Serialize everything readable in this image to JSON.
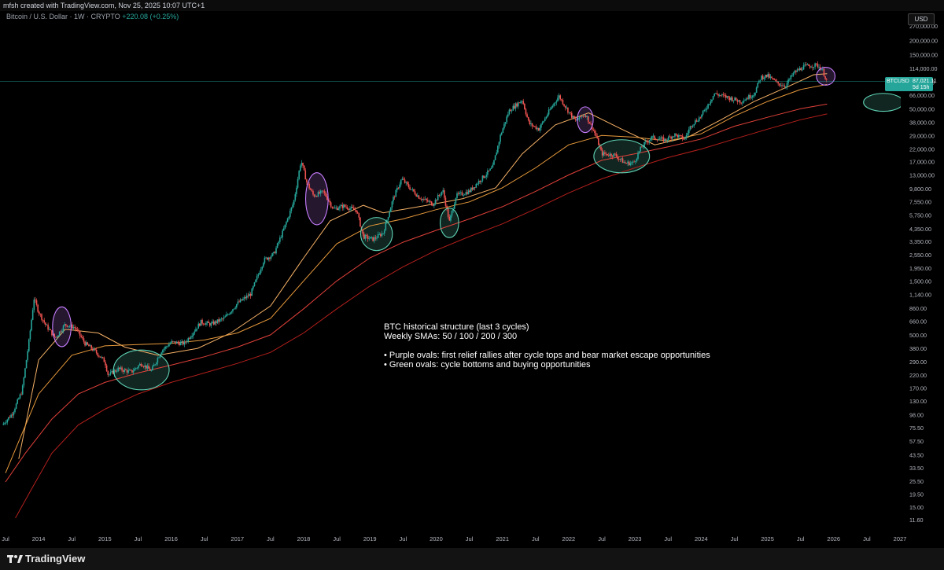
{
  "header": {
    "top_text": "mfsh created with TradingView.com, Nov 25, 2025 10:07 UTC+1",
    "symbol_title": "Bitcoin / U.S. Dollar · 1W · CRYPTO",
    "change_text": "+220.08 (+0.25%)",
    "currency": "USD"
  },
  "footer": {
    "brand": "TradingView"
  },
  "price_tag": {
    "symbol": "BTCUSD",
    "value": "87,021.11",
    "countdown": "5d 15h"
  },
  "annotation": {
    "lines": [
      "BTC historical structure (last 3 cycles)",
      "Weekly SMAs: 50 / 100 / 200 / 300",
      "",
      "• Purple ovals: first relief rallies after cycle tops and bear market escape opportunities",
      "• Green ovals: cycle bottoms and buying opportunities"
    ]
  },
  "colors": {
    "background": "#000000",
    "up": "#26a69a",
    "down": "#ef5350",
    "sma50": "#f7b267",
    "sma100": "#e89a3c",
    "sma200": "#e0413a",
    "sma300": "#b3201c",
    "purple_oval": "#c77dff",
    "green_oval": "#5fd3b5",
    "price_line": "#26a69a"
  },
  "chart_data": {
    "type": "candlestick",
    "timeframe": "1W",
    "y_scale": "log",
    "y_ticks": [
      270000,
      200000,
      150000,
      114000,
      86000,
      66000,
      50000,
      38000,
      29000,
      22000,
      17000,
      13000,
      9800,
      7550,
      5750,
      4350,
      3350,
      2550,
      1950,
      1500,
      1140,
      860,
      660,
      500,
      380,
      290,
      220,
      170,
      130,
      98,
      75.5,
      57.5,
      43.5,
      33.5,
      25.5,
      19.5,
      15,
      11.6
    ],
    "y_tick_labels": [
      "270,000.00",
      "200,000.00",
      "150,000.00",
      "114,000.00",
      "86,000.00",
      "66,000.00",
      "50,000.00",
      "38,000.00",
      "29,000.00",
      "22,000.00",
      "17,000.00",
      "13,000.00",
      "9,800.00",
      "7,550.00",
      "5,750.00",
      "4,350.00",
      "3,350.00",
      "2,550.00",
      "1,950.00",
      "1,500.00",
      "1,140.00",
      "860.00",
      "660.00",
      "500.00",
      "380.00",
      "290.00",
      "220.00",
      "170.00",
      "130.00",
      "98.00",
      "75.50",
      "57.50",
      "43.50",
      "33.50",
      "25.50",
      "19.50",
      "15.00",
      "11.60"
    ],
    "x_ticks": [
      "Jul",
      "2014",
      "Jul",
      "2015",
      "Jul",
      "2016",
      "Jul",
      "2017",
      "Jul",
      "2018",
      "Jul",
      "2019",
      "Jul",
      "2020",
      "Jul",
      "2021",
      "Jul",
      "2022",
      "Jul",
      "2023",
      "Jul",
      "2024",
      "Jul",
      "2025",
      "Jul",
      "2026",
      "Jul",
      "2027"
    ],
    "x_tick_dates": [
      2013.5,
      2014,
      2014.5,
      2015,
      2015.5,
      2016,
      2016.5,
      2017,
      2017.5,
      2018,
      2018.5,
      2019,
      2019.5,
      2020,
      2020.5,
      2021,
      2021.5,
      2022,
      2022.5,
      2023,
      2023.5,
      2024,
      2024.5,
      2025,
      2025.5,
      2026,
      2026.5,
      2027
    ],
    "price_anchors": [
      [
        2013.45,
        80
      ],
      [
        2013.6,
        100
      ],
      [
        2013.75,
        160
      ],
      [
        2013.85,
        420
      ],
      [
        2013.93,
        1050
      ],
      [
        2014.0,
        800
      ],
      [
        2014.1,
        620
      ],
      [
        2014.25,
        470
      ],
      [
        2014.4,
        620
      ],
      [
        2014.55,
        580
      ],
      [
        2014.7,
        420
      ],
      [
        2014.85,
        360
      ],
      [
        2015.0,
        290
      ],
      [
        2015.05,
        220
      ],
      [
        2015.2,
        250
      ],
      [
        2015.4,
        235
      ],
      [
        2015.55,
        280
      ],
      [
        2015.7,
        240
      ],
      [
        2015.85,
        360
      ],
      [
        2016.0,
        430
      ],
      [
        2016.2,
        420
      ],
      [
        2016.45,
        650
      ],
      [
        2016.6,
        620
      ],
      [
        2016.8,
        700
      ],
      [
        2017.0,
        950
      ],
      [
        2017.2,
        1150
      ],
      [
        2017.4,
        2300
      ],
      [
        2017.55,
        2600
      ],
      [
        2017.7,
        4300
      ],
      [
        2017.85,
        7500
      ],
      [
        2017.96,
        17500
      ],
      [
        2018.05,
        11000
      ],
      [
        2018.15,
        8500
      ],
      [
        2018.3,
        9200
      ],
      [
        2018.45,
        6500
      ],
      [
        2018.6,
        6900
      ],
      [
        2018.8,
        6300
      ],
      [
        2018.9,
        3700
      ],
      [
        2019.05,
        3500
      ],
      [
        2019.2,
        4000
      ],
      [
        2019.35,
        8000
      ],
      [
        2019.48,
        12000
      ],
      [
        2019.6,
        10000
      ],
      [
        2019.75,
        8200
      ],
      [
        2019.95,
        7200
      ],
      [
        2020.1,
        9500
      ],
      [
        2020.2,
        5000
      ],
      [
        2020.3,
        8500
      ],
      [
        2020.5,
        9300
      ],
      [
        2020.65,
        11500
      ],
      [
        2020.85,
        15000
      ],
      [
        2020.97,
        29000
      ],
      [
        2021.1,
        48000
      ],
      [
        2021.3,
        60000
      ],
      [
        2021.4,
        37000
      ],
      [
        2021.55,
        33000
      ],
      [
        2021.7,
        47000
      ],
      [
        2021.85,
        65000
      ],
      [
        2022.0,
        47000
      ],
      [
        2022.1,
        39000
      ],
      [
        2022.25,
        45000
      ],
      [
        2022.4,
        30000
      ],
      [
        2022.5,
        20000
      ],
      [
        2022.7,
        19500
      ],
      [
        2022.85,
        16500
      ],
      [
        2022.98,
        16600
      ],
      [
        2023.1,
        23000
      ],
      [
        2023.25,
        28000
      ],
      [
        2023.45,
        26500
      ],
      [
        2023.6,
        29500
      ],
      [
        2023.75,
        27000
      ],
      [
        2023.85,
        36000
      ],
      [
        2024.0,
        43000
      ],
      [
        2024.2,
        68000
      ],
      [
        2024.4,
        63000
      ],
      [
        2024.6,
        58000
      ],
      [
        2024.8,
        68000
      ],
      [
        2024.9,
        95000
      ],
      [
        2025.0,
        98000
      ],
      [
        2025.15,
        84000
      ],
      [
        2025.27,
        80000
      ],
      [
        2025.4,
        104000
      ],
      [
        2025.55,
        118000
      ],
      [
        2025.75,
        122000
      ],
      [
        2025.83,
        110000
      ],
      [
        2025.9,
        87021
      ]
    ],
    "sma_series": [
      {
        "period": 50,
        "points": [
          [
            2013.7,
            40
          ],
          [
            2014.0,
            300
          ],
          [
            2014.4,
            560
          ],
          [
            2014.9,
            520
          ],
          [
            2015.3,
            390
          ],
          [
            2015.8,
            330
          ],
          [
            2016.4,
            380
          ],
          [
            2016.9,
            520
          ],
          [
            2017.5,
            900
          ],
          [
            2018.0,
            2400
          ],
          [
            2018.4,
            5100
          ],
          [
            2018.9,
            7000
          ],
          [
            2019.2,
            6000
          ],
          [
            2019.8,
            6900
          ],
          [
            2020.4,
            8000
          ],
          [
            2020.9,
            10000
          ],
          [
            2021.3,
            20000
          ],
          [
            2021.8,
            36000
          ],
          [
            2022.3,
            46000
          ],
          [
            2022.8,
            33000
          ],
          [
            2023.3,
            24000
          ],
          [
            2023.8,
            28000
          ],
          [
            2024.3,
            40000
          ],
          [
            2024.8,
            58000
          ],
          [
            2025.3,
            78000
          ],
          [
            2025.7,
            100000
          ],
          [
            2025.9,
            102000
          ]
        ]
      },
      {
        "period": 100,
        "points": [
          [
            2013.5,
            30
          ],
          [
            2014.0,
            150
          ],
          [
            2014.5,
            330
          ],
          [
            2015.0,
            400
          ],
          [
            2015.5,
            410
          ],
          [
            2016.0,
            420
          ],
          [
            2016.5,
            450
          ],
          [
            2017.0,
            520
          ],
          [
            2017.5,
            700
          ],
          [
            2018.0,
            1500
          ],
          [
            2018.5,
            3200
          ],
          [
            2019.0,
            4600
          ],
          [
            2019.5,
            5300
          ],
          [
            2020.0,
            6400
          ],
          [
            2020.5,
            7500
          ],
          [
            2021.0,
            10000
          ],
          [
            2021.5,
            15000
          ],
          [
            2022.0,
            24000
          ],
          [
            2022.5,
            29000
          ],
          [
            2023.0,
            28000
          ],
          [
            2023.5,
            26000
          ],
          [
            2024.0,
            30000
          ],
          [
            2024.5,
            43000
          ],
          [
            2025.0,
            58000
          ],
          [
            2025.5,
            74000
          ],
          [
            2025.9,
            82000
          ]
        ]
      },
      {
        "period": 200,
        "points": [
          [
            2013.5,
            25
          ],
          [
            2013.8,
            45
          ],
          [
            2014.2,
            90
          ],
          [
            2014.6,
            150
          ],
          [
            2015.0,
            190
          ],
          [
            2015.5,
            230
          ],
          [
            2016.0,
            270
          ],
          [
            2016.5,
            320
          ],
          [
            2017.0,
            390
          ],
          [
            2017.5,
            500
          ],
          [
            2018.0,
            850
          ],
          [
            2018.5,
            1500
          ],
          [
            2019.0,
            2400
          ],
          [
            2019.5,
            3300
          ],
          [
            2020.0,
            4200
          ],
          [
            2020.5,
            5300
          ],
          [
            2021.0,
            6800
          ],
          [
            2021.5,
            9300
          ],
          [
            2022.0,
            13000
          ],
          [
            2022.5,
            17500
          ],
          [
            2023.0,
            20000
          ],
          [
            2023.5,
            23000
          ],
          [
            2024.0,
            27000
          ],
          [
            2024.5,
            35000
          ],
          [
            2025.0,
            42000
          ],
          [
            2025.5,
            50000
          ],
          [
            2025.9,
            55000
          ]
        ]
      },
      {
        "period": 300,
        "points": [
          [
            2013.65,
            12
          ],
          [
            2013.9,
            22
          ],
          [
            2014.2,
            45
          ],
          [
            2014.6,
            80
          ],
          [
            2015.0,
            110
          ],
          [
            2015.5,
            150
          ],
          [
            2016.0,
            190
          ],
          [
            2016.5,
            230
          ],
          [
            2017.0,
            280
          ],
          [
            2017.5,
            350
          ],
          [
            2018.0,
            520
          ],
          [
            2018.5,
            850
          ],
          [
            2019.0,
            1350
          ],
          [
            2019.5,
            2000
          ],
          [
            2020.0,
            2800
          ],
          [
            2020.5,
            3700
          ],
          [
            2021.0,
            4800
          ],
          [
            2021.5,
            6500
          ],
          [
            2022.0,
            9000
          ],
          [
            2022.5,
            12000
          ],
          [
            2023.0,
            15000
          ],
          [
            2023.5,
            18500
          ],
          [
            2024.0,
            22000
          ],
          [
            2024.5,
            27000
          ],
          [
            2025.0,
            33000
          ],
          [
            2025.5,
            40000
          ],
          [
            2025.9,
            45000
          ]
        ]
      }
    ],
    "ovals": [
      {
        "kind": "purple",
        "x": 2014.35,
        "y": 590,
        "x_half": 0.14,
        "y_ratio": 1.5
      },
      {
        "kind": "green",
        "x": 2015.55,
        "y": 245,
        "x_half": 0.42,
        "y_ratio": 1.5
      },
      {
        "kind": "purple",
        "x": 2018.2,
        "y": 8000,
        "x_half": 0.17,
        "y_ratio": 1.7
      },
      {
        "kind": "green",
        "x": 2019.1,
        "y": 3900,
        "x_half": 0.24,
        "y_ratio": 1.4
      },
      {
        "kind": "green",
        "x": 2020.2,
        "y": 4900,
        "x_half": 0.14,
        "y_ratio": 1.35
      },
      {
        "kind": "purple",
        "x": 2022.25,
        "y": 40000,
        "x_half": 0.12,
        "y_ratio": 1.3
      },
      {
        "kind": "green",
        "x": 2022.8,
        "y": 19000,
        "x_half": 0.42,
        "y_ratio": 1.4
      },
      {
        "kind": "purple",
        "x": 2025.88,
        "y": 97000,
        "x_half": 0.14,
        "y_ratio": 1.2
      },
      {
        "kind": "green",
        "x": 2026.75,
        "y": 57000,
        "x_half": 0.3,
        "y_ratio": 1.2
      }
    ],
    "last_price": 87021.11
  }
}
